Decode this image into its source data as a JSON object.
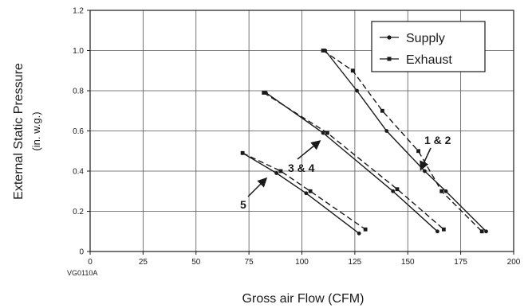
{
  "chart_data": {
    "type": "line",
    "xlabel": "Gross air Flow (CFM)",
    "ylabel": "External Static Pressure",
    "ylabel_units": "(in. w.g.)",
    "xlim": [
      0,
      200
    ],
    "ylim": [
      0,
      1.2
    ],
    "x_ticks": [
      "0",
      "25",
      "50",
      "75",
      "100",
      "125",
      "150",
      "175",
      "200"
    ],
    "y_ticks": [
      "0",
      "0.2",
      "0.4",
      "0.6",
      "0.8",
      "1.0",
      "1.2"
    ],
    "grid": true,
    "legend_position": "top-right",
    "series": [
      {
        "name": "Supply",
        "group": "1 & 2",
        "style": "solid",
        "marker": "circle",
        "x": [
          111,
          126,
          140,
          158,
          168,
          187
        ],
        "y": [
          1.0,
          0.8,
          0.6,
          0.4,
          0.3,
          0.1
        ]
      },
      {
        "name": "Exhaust",
        "group": "1 & 2",
        "style": "dashed",
        "marker": "square",
        "x": [
          110,
          124,
          138,
          155,
          166,
          185
        ],
        "y": [
          1.0,
          0.9,
          0.7,
          0.5,
          0.3,
          0.1
        ]
      },
      {
        "name": "Supply",
        "group": "3 & 4",
        "style": "solid",
        "marker": "circle",
        "x": [
          83,
          110,
          143,
          164
        ],
        "y": [
          0.79,
          0.59,
          0.3,
          0.1
        ]
      },
      {
        "name": "Exhaust",
        "group": "3 & 4",
        "style": "dashed",
        "marker": "square",
        "x": [
          82,
          112,
          145,
          167
        ],
        "y": [
          0.79,
          0.59,
          0.31,
          0.11
        ]
      },
      {
        "name": "Supply",
        "group": "5",
        "style": "solid",
        "marker": "circle",
        "x": [
          72,
          88,
          102,
          127
        ],
        "y": [
          0.49,
          0.39,
          0.29,
          0.09
        ]
      },
      {
        "name": "Exhaust",
        "group": "5",
        "style": "dashed",
        "marker": "square",
        "x": [
          72,
          90,
          104,
          130
        ],
        "y": [
          0.49,
          0.4,
          0.3,
          0.11
        ]
      }
    ],
    "callouts": [
      {
        "text": "1 & 2",
        "target": [
          158,
          0.4
        ]
      },
      {
        "text": "3 & 4",
        "target": [
          110,
          0.59
        ]
      },
      {
        "text": "5",
        "target": [
          88,
          0.39
        ]
      }
    ],
    "legend": {
      "supply_label": "Supply",
      "exhaust_label": "Exhaust"
    },
    "code": "VG0110A"
  }
}
